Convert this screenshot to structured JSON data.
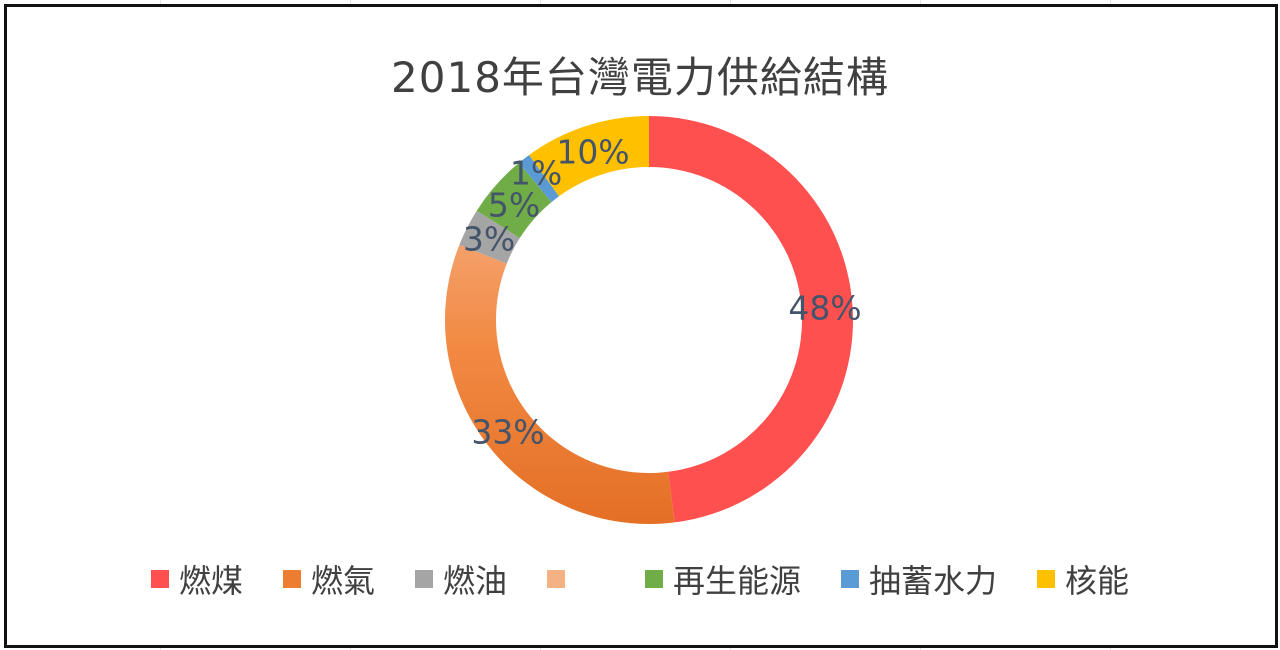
{
  "chart": {
    "title": "2018年台灣電力供給結構"
  },
  "chart_data": {
    "type": "pie",
    "variant": "donut",
    "title": "2018年台灣電力供給結構",
    "categories": [
      "燃煤",
      "燃氣",
      "燃油",
      "",
      "再生能源",
      "抽蓄水力",
      "核能"
    ],
    "values": [
      48,
      33,
      3,
      0,
      5,
      1,
      10
    ],
    "unit": "%",
    "colors": [
      "#ff5050",
      "#ed7d31",
      "#a5a5a5",
      "#f4b183",
      "#70ad47",
      "#5b9bd5",
      "#ffc000"
    ],
    "data_labels": [
      "48%",
      "33%",
      "3%",
      "",
      "5%",
      "1%",
      "10%"
    ],
    "legend_position": "bottom",
    "start_angle_deg": 0,
    "direction": "clockwise"
  },
  "labels": {
    "coal": "48%",
    "gas": "33%",
    "oil": "3%",
    "renewable": "5%",
    "pumped_hydro": "1%",
    "nuclear": "10%"
  },
  "legend": {
    "items": [
      {
        "label": "燃煤",
        "color": "#ff5050"
      },
      {
        "label": "燃氣",
        "color": "#ed7d31"
      },
      {
        "label": "燃油",
        "color": "#a5a5a5"
      },
      {
        "label": "",
        "color": "#f4b183"
      },
      {
        "label": "再生能源",
        "color": "#70ad47"
      },
      {
        "label": "抽蓄水力",
        "color": "#5b9bd5"
      },
      {
        "label": "核能",
        "color": "#ffc000"
      }
    ]
  }
}
